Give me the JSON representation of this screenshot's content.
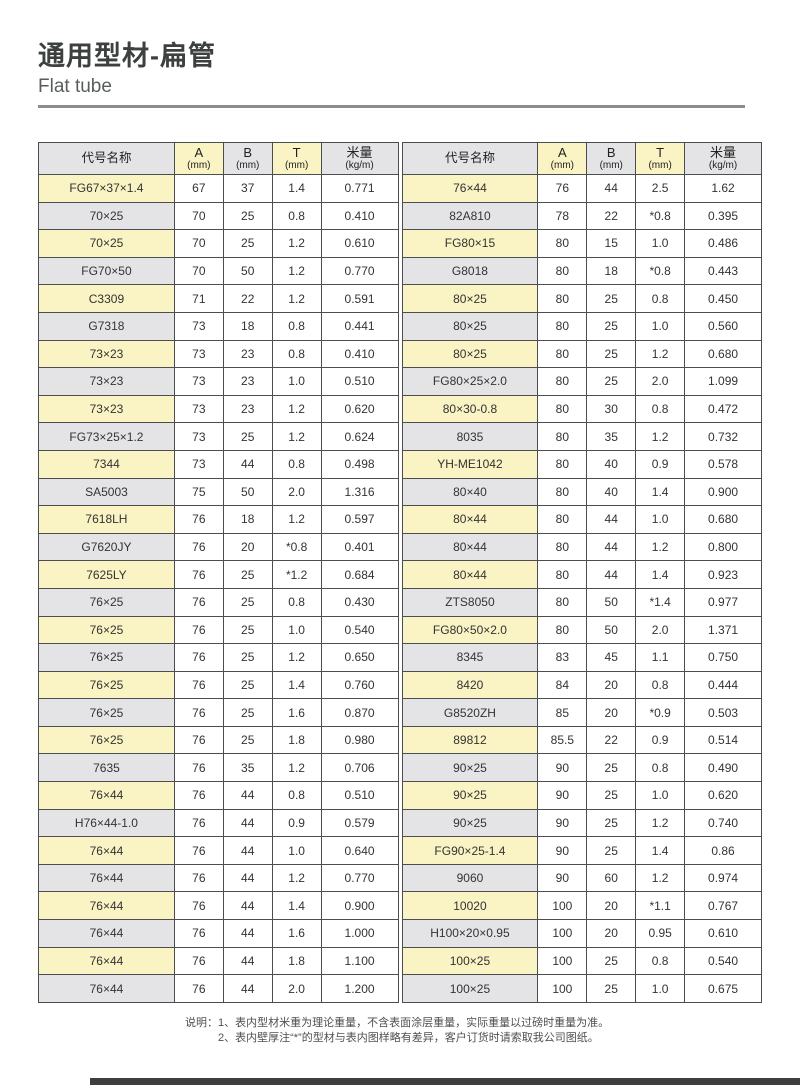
{
  "header": {
    "title_zh": "通用型材-扁管",
    "title_en": "Flat tube"
  },
  "tables": {
    "headers": {
      "name": "代号名称",
      "a": "A",
      "b": "B",
      "t": "T",
      "unit_mm": "(mm)",
      "weight": "米量",
      "unit_kgm": "(kg/m)"
    },
    "left_rows": [
      {
        "name": "FG67×37×1.4",
        "a": "67",
        "b": "37",
        "t": "1.4",
        "w": "0.771"
      },
      {
        "name": "70×25",
        "a": "70",
        "b": "25",
        "t": "0.8",
        "w": "0.410"
      },
      {
        "name": "70×25",
        "a": "70",
        "b": "25",
        "t": "1.2",
        "w": "0.610"
      },
      {
        "name": "FG70×50",
        "a": "70",
        "b": "50",
        "t": "1.2",
        "w": "0.770"
      },
      {
        "name": "C3309",
        "a": "71",
        "b": "22",
        "t": "1.2",
        "w": "0.591"
      },
      {
        "name": "G7318",
        "a": "73",
        "b": "18",
        "t": "0.8",
        "w": "0.441"
      },
      {
        "name": "73×23",
        "a": "73",
        "b": "23",
        "t": "0.8",
        "w": "0.410"
      },
      {
        "name": "73×23",
        "a": "73",
        "b": "23",
        "t": "1.0",
        "w": "0.510"
      },
      {
        "name": "73×23",
        "a": "73",
        "b": "23",
        "t": "1.2",
        "w": "0.620"
      },
      {
        "name": "FG73×25×1.2",
        "a": "73",
        "b": "25",
        "t": "1.2",
        "w": "0.624"
      },
      {
        "name": "7344",
        "a": "73",
        "b": "44",
        "t": "0.8",
        "w": "0.498"
      },
      {
        "name": "SA5003",
        "a": "75",
        "b": "50",
        "t": "2.0",
        "w": "1.316"
      },
      {
        "name": "7618LH",
        "a": "76",
        "b": "18",
        "t": "1.2",
        "w": "0.597"
      },
      {
        "name": "G7620JY",
        "a": "76",
        "b": "20",
        "t": "*0.8",
        "w": "0.401"
      },
      {
        "name": "7625LY",
        "a": "76",
        "b": "25",
        "t": "*1.2",
        "w": "0.684"
      },
      {
        "name": "76×25",
        "a": "76",
        "b": "25",
        "t": "0.8",
        "w": "0.430"
      },
      {
        "name": "76×25",
        "a": "76",
        "b": "25",
        "t": "1.0",
        "w": "0.540"
      },
      {
        "name": "76×25",
        "a": "76",
        "b": "25",
        "t": "1.2",
        "w": "0.650"
      },
      {
        "name": "76×25",
        "a": "76",
        "b": "25",
        "t": "1.4",
        "w": "0.760"
      },
      {
        "name": "76×25",
        "a": "76",
        "b": "25",
        "t": "1.6",
        "w": "0.870"
      },
      {
        "name": "76×25",
        "a": "76",
        "b": "25",
        "t": "1.8",
        "w": "0.980"
      },
      {
        "name": "7635",
        "a": "76",
        "b": "35",
        "t": "1.2",
        "w": "0.706"
      },
      {
        "name": "76×44",
        "a": "76",
        "b": "44",
        "t": "0.8",
        "w": "0.510"
      },
      {
        "name": "H76×44-1.0",
        "a": "76",
        "b": "44",
        "t": "0.9",
        "w": "0.579"
      },
      {
        "name": "76×44",
        "a": "76",
        "b": "44",
        "t": "1.0",
        "w": "0.640"
      },
      {
        "name": "76×44",
        "a": "76",
        "b": "44",
        "t": "1.2",
        "w": "0.770"
      },
      {
        "name": "76×44",
        "a": "76",
        "b": "44",
        "t": "1.4",
        "w": "0.900"
      },
      {
        "name": "76×44",
        "a": "76",
        "b": "44",
        "t": "1.6",
        "w": "1.000"
      },
      {
        "name": "76×44",
        "a": "76",
        "b": "44",
        "t": "1.8",
        "w": "1.100"
      },
      {
        "name": "76×44",
        "a": "76",
        "b": "44",
        "t": "2.0",
        "w": "1.200"
      }
    ],
    "right_rows": [
      {
        "name": "76×44",
        "a": "76",
        "b": "44",
        "t": "2.5",
        "w": "1.62"
      },
      {
        "name": "82A810",
        "a": "78",
        "b": "22",
        "t": "*0.8",
        "w": "0.395"
      },
      {
        "name": "FG80×15",
        "a": "80",
        "b": "15",
        "t": "1.0",
        "w": "0.486"
      },
      {
        "name": "G8018",
        "a": "80",
        "b": "18",
        "t": "*0.8",
        "w": "0.443"
      },
      {
        "name": "80×25",
        "a": "80",
        "b": "25",
        "t": "0.8",
        "w": "0.450"
      },
      {
        "name": "80×25",
        "a": "80",
        "b": "25",
        "t": "1.0",
        "w": "0.560"
      },
      {
        "name": "80×25",
        "a": "80",
        "b": "25",
        "t": "1.2",
        "w": "0.680"
      },
      {
        "name": "FG80×25×2.0",
        "a": "80",
        "b": "25",
        "t": "2.0",
        "w": "1.099"
      },
      {
        "name": "80×30-0.8",
        "a": "80",
        "b": "30",
        "t": "0.8",
        "w": "0.472"
      },
      {
        "name": "8035",
        "a": "80",
        "b": "35",
        "t": "1.2",
        "w": "0.732"
      },
      {
        "name": "YH-ME1042",
        "a": "80",
        "b": "40",
        "t": "0.9",
        "w": "0.578"
      },
      {
        "name": "80×40",
        "a": "80",
        "b": "40",
        "t": "1.4",
        "w": "0.900"
      },
      {
        "name": "80×44",
        "a": "80",
        "b": "44",
        "t": "1.0",
        "w": "0.680"
      },
      {
        "name": "80×44",
        "a": "80",
        "b": "44",
        "t": "1.2",
        "w": "0.800"
      },
      {
        "name": "80×44",
        "a": "80",
        "b": "44",
        "t": "1.4",
        "w": "0.923"
      },
      {
        "name": "ZTS8050",
        "a": "80",
        "b": "50",
        "t": "*1.4",
        "w": "0.977"
      },
      {
        "name": "FG80×50×2.0",
        "a": "80",
        "b": "50",
        "t": "2.0",
        "w": "1.371"
      },
      {
        "name": "8345",
        "a": "83",
        "b": "45",
        "t": "1.1",
        "w": "0.750"
      },
      {
        "name": "8420",
        "a": "84",
        "b": "20",
        "t": "0.8",
        "w": "0.444"
      },
      {
        "name": "G8520ZH",
        "a": "85",
        "b": "20",
        "t": "*0.9",
        "w": "0.503"
      },
      {
        "name": "89812",
        "a": "85.5",
        "b": "22",
        "t": "0.9",
        "w": "0.514"
      },
      {
        "name": "90×25",
        "a": "90",
        "b": "25",
        "t": "0.8",
        "w": "0.490"
      },
      {
        "name": "90×25",
        "a": "90",
        "b": "25",
        "t": "1.0",
        "w": "0.620"
      },
      {
        "name": "90×25",
        "a": "90",
        "b": "25",
        "t": "1.2",
        "w": "0.740"
      },
      {
        "name": "FG90×25-1.4",
        "a": "90",
        "b": "25",
        "t": "1.4",
        "w": "0.86"
      },
      {
        "name": "9060",
        "a": "90",
        "b": "60",
        "t": "1.2",
        "w": "0.974"
      },
      {
        "name": "10020",
        "a": "100",
        "b": "20",
        "t": "*1.1",
        "w": "0.767"
      },
      {
        "name": "H100×20×0.95",
        "a": "100",
        "b": "20",
        "t": "0.95",
        "w": "0.610"
      },
      {
        "name": "100×25",
        "a": "100",
        "b": "25",
        "t": "0.8",
        "w": "0.540"
      },
      {
        "name": "100×25",
        "a": "100",
        "b": "25",
        "t": "1.0",
        "w": "0.675"
      }
    ]
  },
  "notes": {
    "label": "说明：",
    "line1": "1、表内型材米重为理论重量，不含表面涂层重量，实际重量以过磅时重量为准。",
    "line2": "2、表内壁厚注“*”的型材与表内图样略有差异，客户订货时请索取我公司图纸。"
  },
  "colors": {
    "yellow": "#faf3c3",
    "gray": "#e4e4e6",
    "border": "#4b4d4f",
    "rule": "#8b8d90",
    "title": "#3c4140",
    "bar": "#3e3e40"
  }
}
